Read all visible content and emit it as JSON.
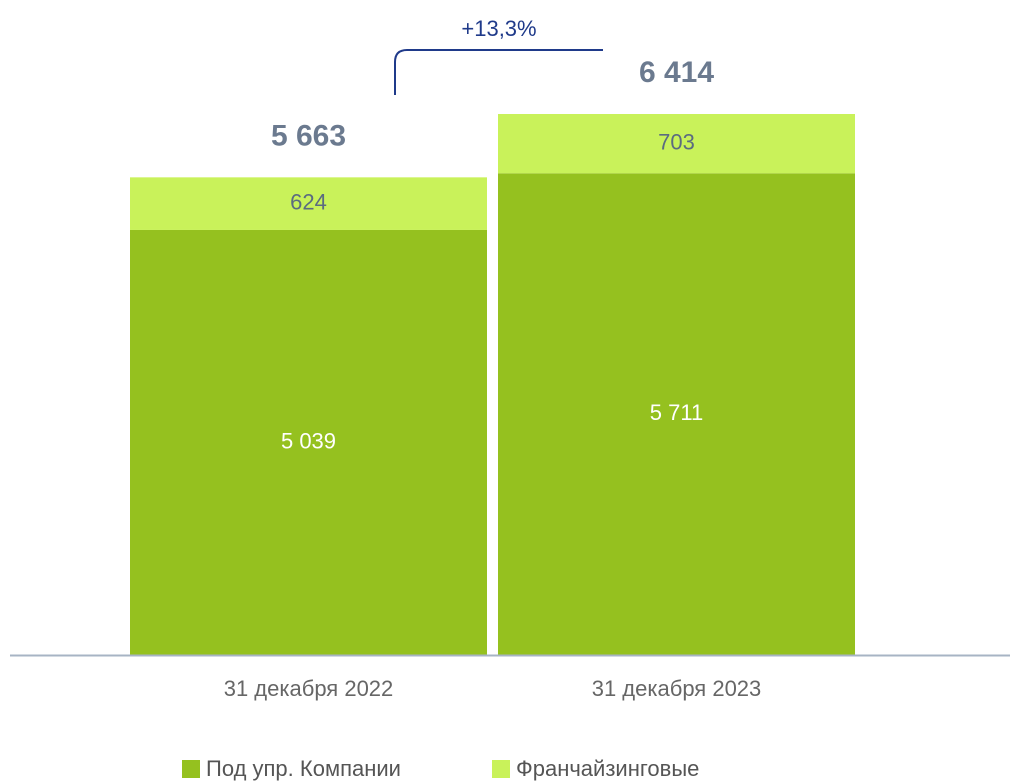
{
  "chart_data": {
    "type": "stacked_bar",
    "categories": [
      "31 декабря 2022",
      "31 декабря 2023"
    ],
    "series": [
      {
        "name": "Под упр. Компании",
        "color": "#95c11f",
        "values": [
          5039,
          5711
        ],
        "value_labels": [
          "5 039",
          "5 711"
        ]
      },
      {
        "name": "Франчайзинговые",
        "color": "#c9f25a",
        "values": [
          624,
          703
        ],
        "value_labels": [
          "624",
          "703"
        ]
      }
    ],
    "totals": {
      "values": [
        5663,
        6414
      ],
      "value_labels": [
        "5 663",
        "6 414"
      ]
    },
    "annotation": "+13,3%"
  }
}
